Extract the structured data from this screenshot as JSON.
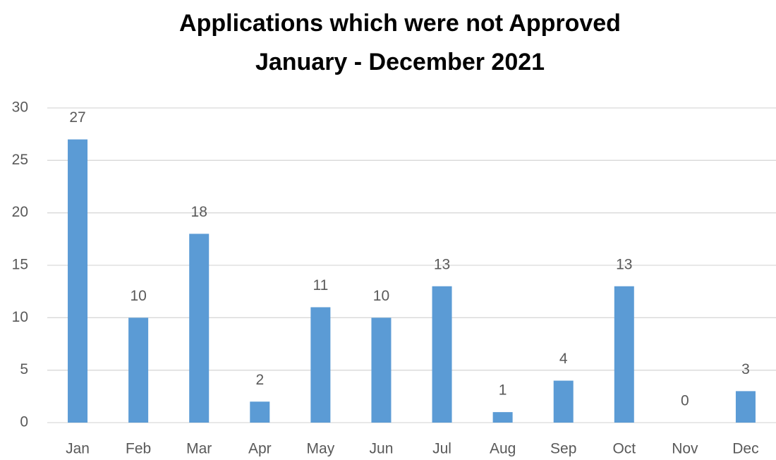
{
  "chart_data": {
    "type": "bar",
    "title": [
      "Applications which were not Approved",
      "January - December 2021"
    ],
    "categories": [
      "Jan",
      "Feb",
      "Mar",
      "Apr",
      "May",
      "Jun",
      "Jul",
      "Aug",
      "Sep",
      "Oct",
      "Nov",
      "Dec"
    ],
    "values": [
      27,
      10,
      18,
      2,
      11,
      10,
      13,
      1,
      4,
      13,
      0,
      3
    ],
    "color": "#5b9bd5",
    "ylim": [
      0,
      30
    ],
    "yticks": [
      0,
      5,
      10,
      15,
      20,
      25,
      30
    ],
    "grid": true
  }
}
